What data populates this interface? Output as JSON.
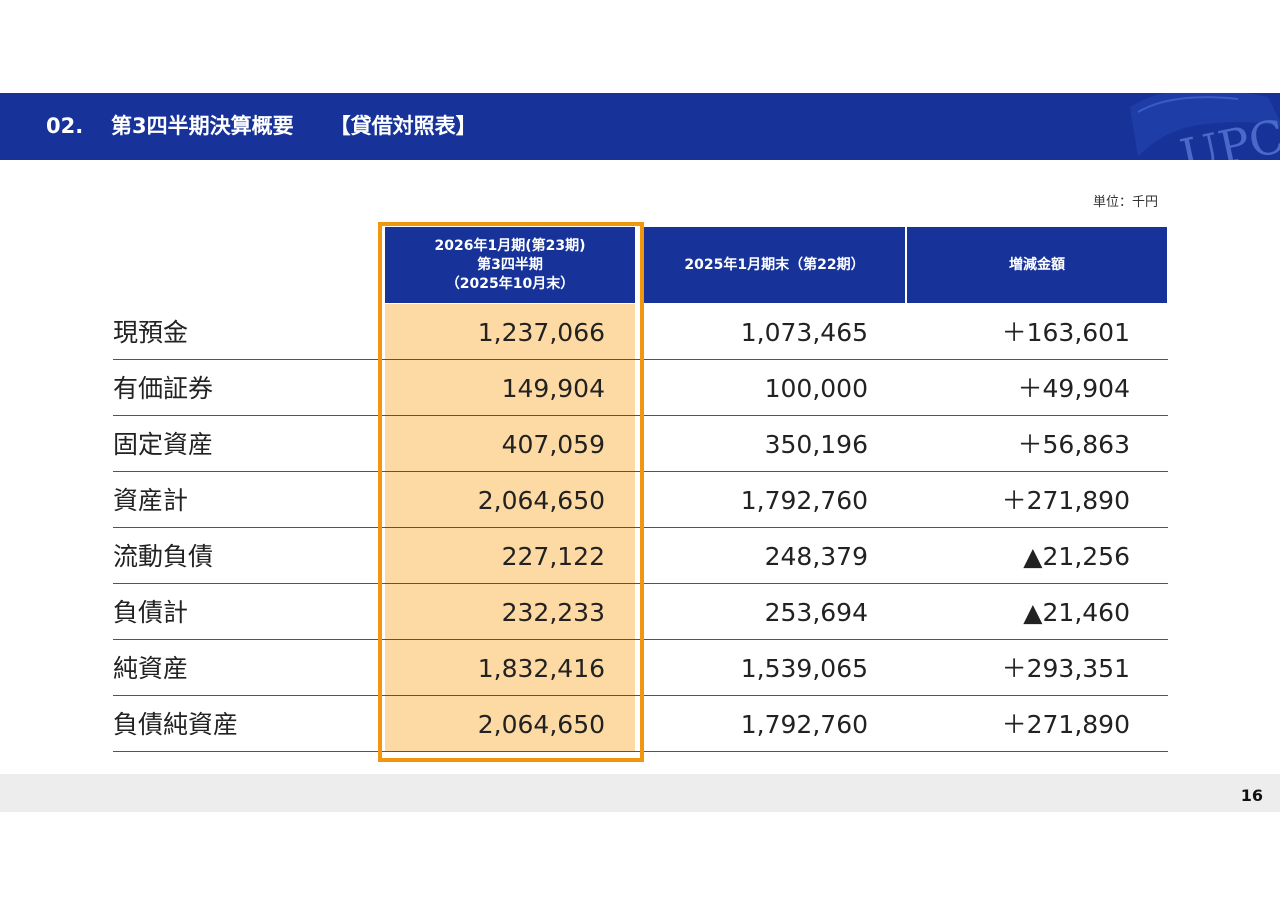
{
  "header": {
    "number": "02.",
    "title": "第3四半期決算概要",
    "subtitle": "【貸借対照表】",
    "logo_text": "UPC"
  },
  "unit": "単位：千円",
  "table": {
    "columns": [
      {
        "line1": "2026年1月期(第23期)",
        "line2": "第3四半期",
        "line3": "（2025年10月末）"
      },
      {
        "line1": "2025年1月期末（第22期）"
      },
      {
        "line1": "増減金額"
      }
    ],
    "rows": [
      {
        "label": "現預金",
        "current": "1,237,066",
        "prior": "1,073,465",
        "change": "＋163,601"
      },
      {
        "label": "有価証券",
        "current": "149,904",
        "prior": "100,000",
        "change": "＋49,904"
      },
      {
        "label": "固定資産",
        "current": "407,059",
        "prior": "350,196",
        "change": "＋56,863"
      },
      {
        "label": "資産計",
        "current": "2,064,650",
        "prior": "1,792,760",
        "change": "＋271,890"
      },
      {
        "label": "流動負債",
        "current": "227,122",
        "prior": "248,379",
        "change": "▲21,256"
      },
      {
        "label": "負債計",
        "current": "232,233",
        "prior": "253,694",
        "change": "▲21,460"
      },
      {
        "label": "純資産",
        "current": "1,832,416",
        "prior": "1,539,065",
        "change": "＋293,351"
      },
      {
        "label": "負債純資産",
        "current": "2,064,650",
        "prior": "1,792,760",
        "change": "＋271,890"
      }
    ]
  },
  "footer": {
    "page_number": "16"
  },
  "colors": {
    "header_bg": "#17339a",
    "highlight_border": "#f0960f",
    "highlight_fill": "#fdd9a3"
  }
}
